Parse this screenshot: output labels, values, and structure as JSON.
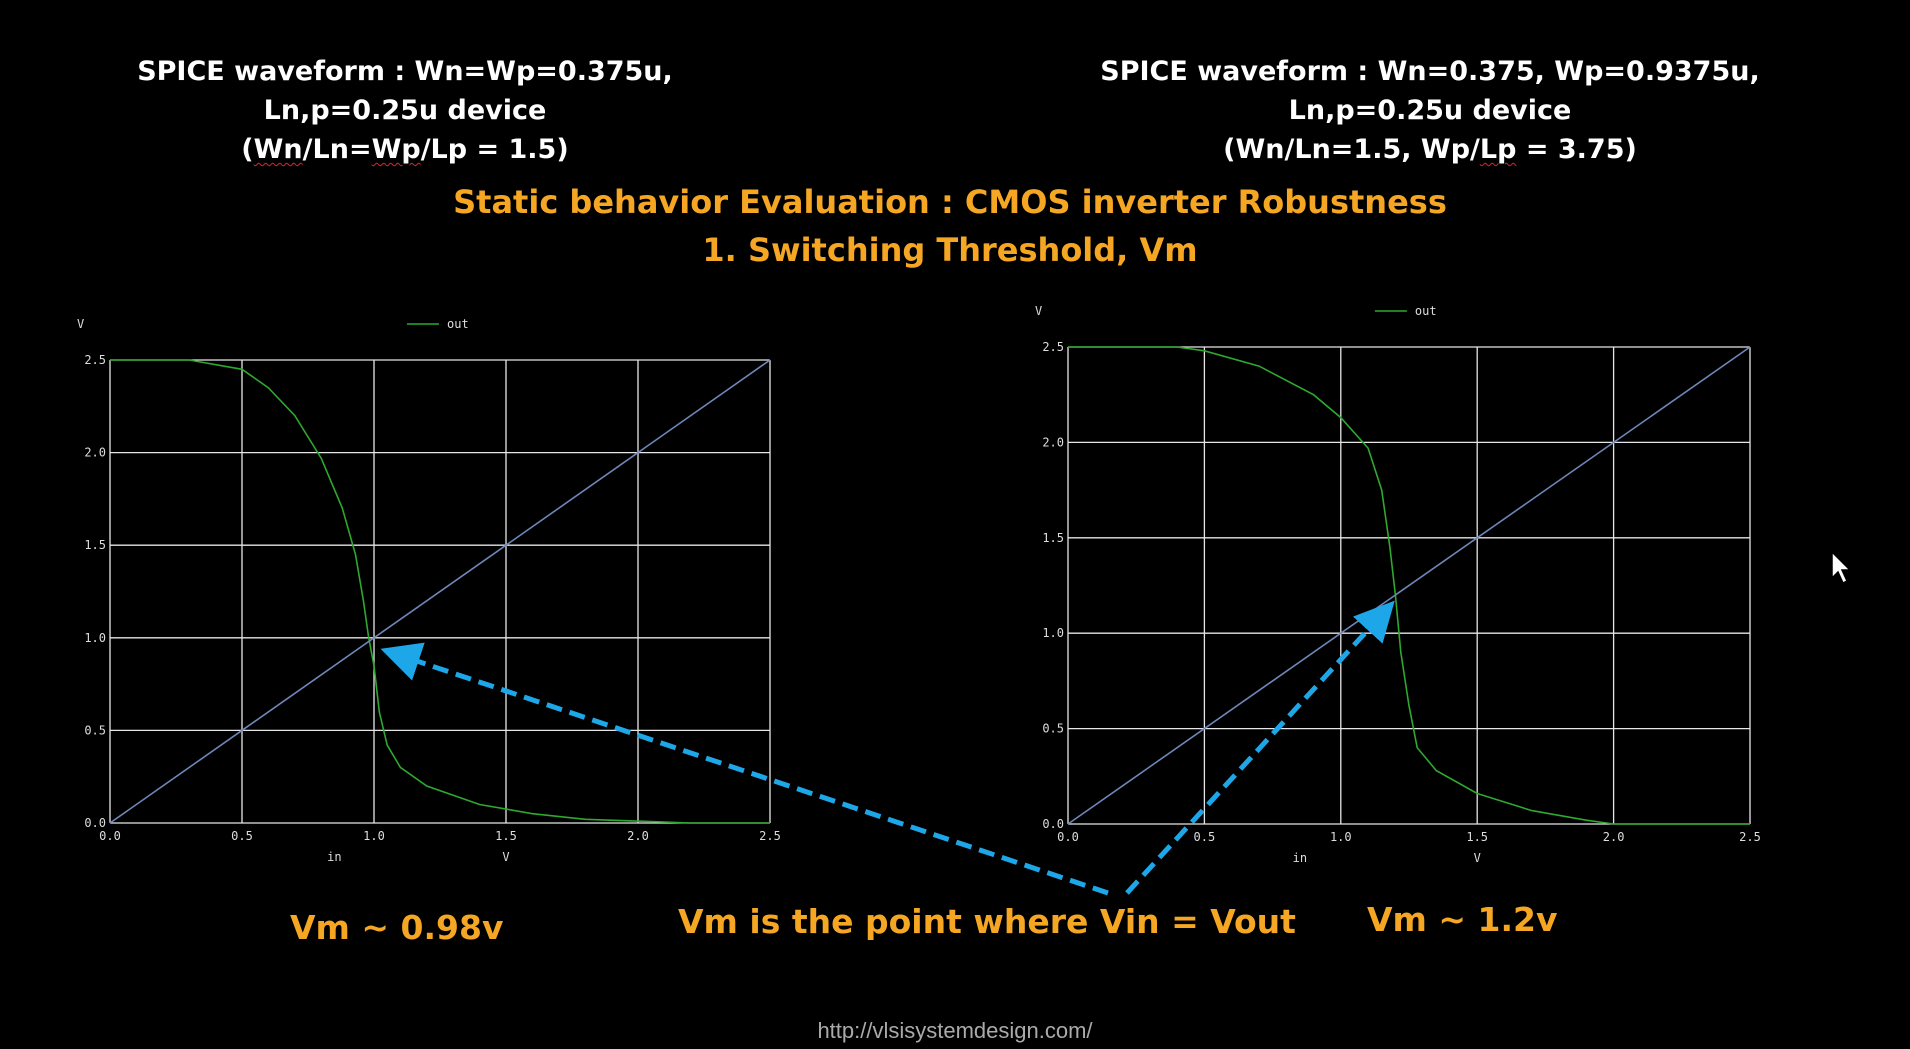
{
  "left_caption": {
    "line1": "SPICE waveform : Wn=Wp=0.375u,",
    "line2": "Ln,p=0.25u device",
    "line3_open": "(",
    "line3_a": "Wn",
    "line3_b": "/Ln=",
    "line3_c": "Wp",
    "line3_d": "/Lp = 1.5)"
  },
  "right_caption": {
    "line1": "SPICE waveform : Wn=0.375, Wp=0.9375u,",
    "line2": "Ln,p=0.25u device",
    "line3_a": "(Wn/Ln=1.5, Wp/",
    "line3_b": "Lp",
    "line3_c": " = 3.75)"
  },
  "title": {
    "line1": "Static behavior Evaluation : CMOS inverter Robustness",
    "line2": "1. Switching Threshold, Vm"
  },
  "vm_left": "Vm ~ 0.98v",
  "vm_right": "Vm ~ 1.2v",
  "vm_note": "Vm is the point where Vin = Vout",
  "url": "http://vlsisystemdesign.com/",
  "colors": {
    "accent": "#f5a623",
    "curve": "#2fa82f",
    "diagonal": "#6f86b8",
    "arrow": "#1ea7e8",
    "grid": "#e6e6e6"
  },
  "chart_data": [
    {
      "type": "line",
      "xlabel": "in",
      "xunit": "V",
      "yunit": "V",
      "xlim": [
        0,
        2.5
      ],
      "ylim": [
        0,
        2.5
      ],
      "grid": true,
      "legend_placement": "top-center",
      "x_ticks": [
        "0.0",
        "0.5",
        "1.0",
        "1.5",
        "2.0",
        "2.5"
      ],
      "y_ticks": [
        "0.0",
        "0.5",
        "1.0",
        "1.5",
        "2.0",
        "2.5"
      ],
      "series": [
        {
          "name": "out",
          "x": [
            0,
            0.3,
            0.5,
            0.6,
            0.7,
            0.8,
            0.88,
            0.93,
            0.96,
            0.98,
            1.0,
            1.02,
            1.05,
            1.1,
            1.2,
            1.4,
            1.6,
            1.8,
            2.0,
            2.2,
            2.5
          ],
          "y": [
            2.5,
            2.5,
            2.45,
            2.35,
            2.2,
            1.97,
            1.7,
            1.45,
            1.2,
            1.0,
            0.85,
            0.6,
            0.42,
            0.3,
            0.2,
            0.1,
            0.05,
            0.02,
            0.01,
            0,
            0
          ]
        },
        {
          "x": [
            0,
            2.5
          ],
          "y": [
            0,
            2.5
          ]
        }
      ]
    },
    {
      "type": "line",
      "xlabel": "in",
      "xunit": "V",
      "yunit": "V",
      "xlim": [
        0,
        2.5
      ],
      "ylim": [
        0,
        2.5
      ],
      "grid": true,
      "legend_placement": "top-center",
      "x_ticks": [
        "0.0",
        "0.5",
        "1.0",
        "1.5",
        "2.0",
        "2.5"
      ],
      "y_ticks": [
        "0.0",
        "0.5",
        "1.0",
        "1.5",
        "2.0",
        "2.5"
      ],
      "series": [
        {
          "name": "out",
          "x": [
            0,
            0.4,
            0.5,
            0.7,
            0.9,
            1.0,
            1.1,
            1.15,
            1.18,
            1.2,
            1.22,
            1.25,
            1.28,
            1.35,
            1.5,
            1.7,
            1.9,
            2.0,
            2.2,
            2.5
          ],
          "y": [
            2.5,
            2.5,
            2.48,
            2.4,
            2.25,
            2.13,
            1.97,
            1.75,
            1.45,
            1.2,
            0.9,
            0.62,
            0.4,
            0.28,
            0.16,
            0.07,
            0.02,
            0,
            0,
            0
          ]
        },
        {
          "x": [
            0,
            2.5
          ],
          "y": [
            0,
            2.5
          ]
        }
      ]
    }
  ]
}
